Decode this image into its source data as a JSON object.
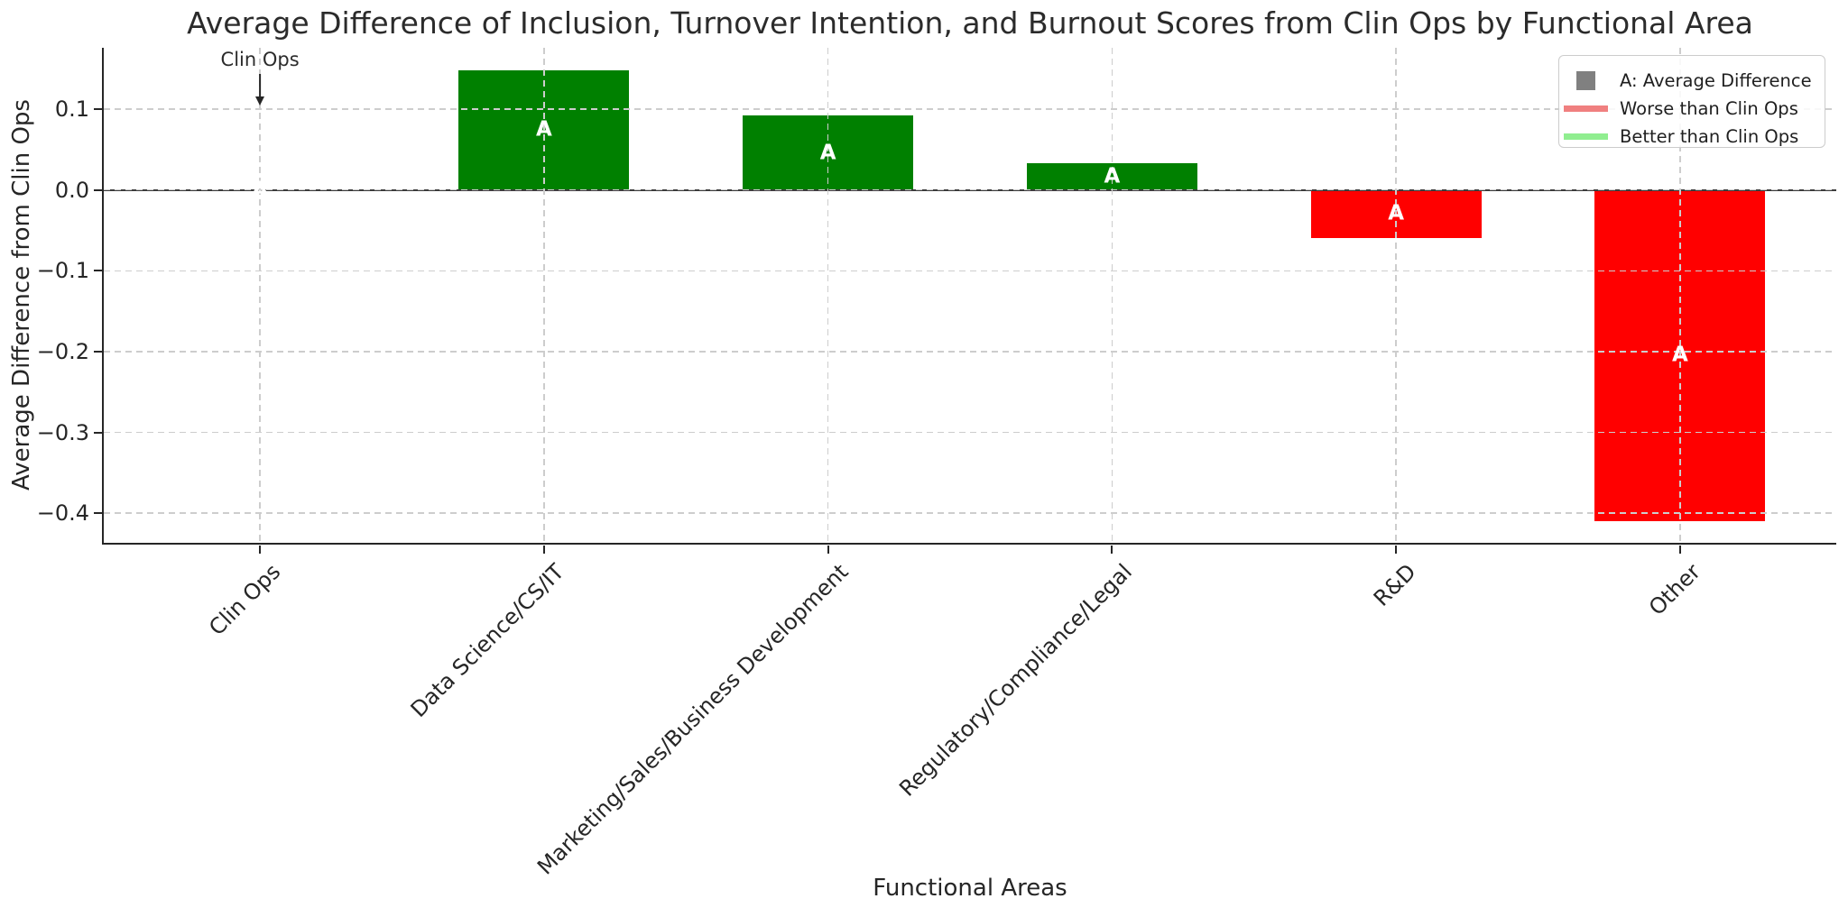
{
  "chart_data": {
    "type": "bar",
    "title": "Average Difference of Inclusion, Turnover Intention, and Burnout Scores from Clin Ops by Functional Area",
    "xlabel": "Functional Areas",
    "ylabel": "Average Difference from Clin Ops",
    "categories": [
      "Clin Ops",
      "Data Science/CS/IT",
      "Marketing/Sales/Business Development",
      "Regulatory/Compliance/Legal",
      "R&D",
      "Other"
    ],
    "values": [
      0.0,
      0.148,
      0.092,
      0.033,
      -0.059,
      -0.41
    ],
    "bar_value_label": "A",
    "positive_color": "#008000",
    "negative_color": "#ff0000",
    "bar_label_color": "#ffffff",
    "yticks": [
      0.1,
      0.0,
      -0.1,
      -0.2,
      -0.3,
      -0.4
    ],
    "ylim": [
      -0.436,
      0.176
    ],
    "grid": true,
    "zero_line": true,
    "annotation": {
      "text": "Clin Ops",
      "category_index": 0
    },
    "legend": {
      "position": "upper right",
      "entries": [
        {
          "swatch": "square",
          "color": "#808080",
          "label": "A: Average Difference"
        },
        {
          "swatch": "line",
          "color": "#f08080",
          "label": "Worse than Clin Ops"
        },
        {
          "swatch": "line",
          "color": "#90ee90",
          "label": "Better than Clin Ops"
        }
      ]
    }
  }
}
